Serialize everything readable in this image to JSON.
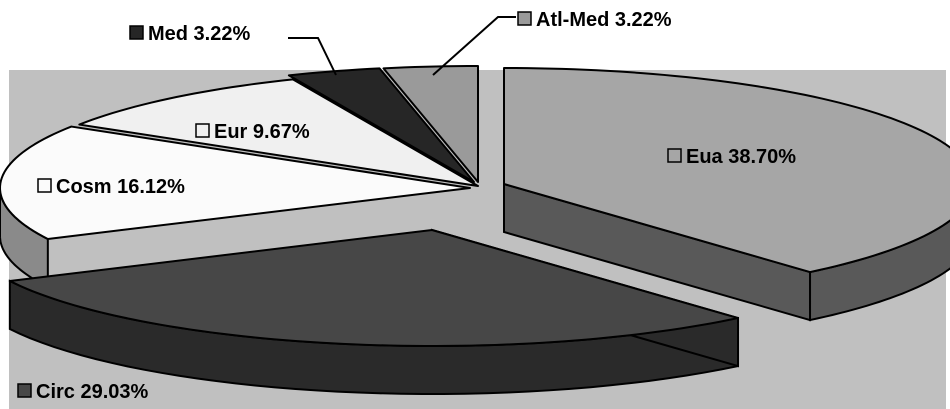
{
  "chart_data": {
    "type": "pie",
    "style": "3d-exploded",
    "title": "",
    "slices": [
      {
        "name": "Eua",
        "label": "Eua 38.70%",
        "value": 38.7,
        "color": "#a6a6a6",
        "side": "#595959"
      },
      {
        "name": "Circ",
        "label": "Circ 29.03%",
        "value": 29.03,
        "color": "#474747",
        "side": "#2a2a2a"
      },
      {
        "name": "Cosm",
        "label": "Cosm 16.12%",
        "value": 16.12,
        "color": "#fbfbfb",
        "side": "#8a8a8a"
      },
      {
        "name": "Eur",
        "label": "Eur 9.67%",
        "value": 9.67,
        "color": "#f0f0f0",
        "side": "#9a9a9a"
      },
      {
        "name": "Med",
        "label": "Med 3.22%",
        "value": 3.22,
        "color": "#262626",
        "side": "#1a1a1a"
      },
      {
        "name": "Atl-Med",
        "label": "Atl-Med 3.22%",
        "value": 3.22,
        "color": "#9a9a9a",
        "side": "#6a6a6a"
      }
    ],
    "plot_background": "#c0c0c0",
    "legend": "inline labels with square markers"
  }
}
